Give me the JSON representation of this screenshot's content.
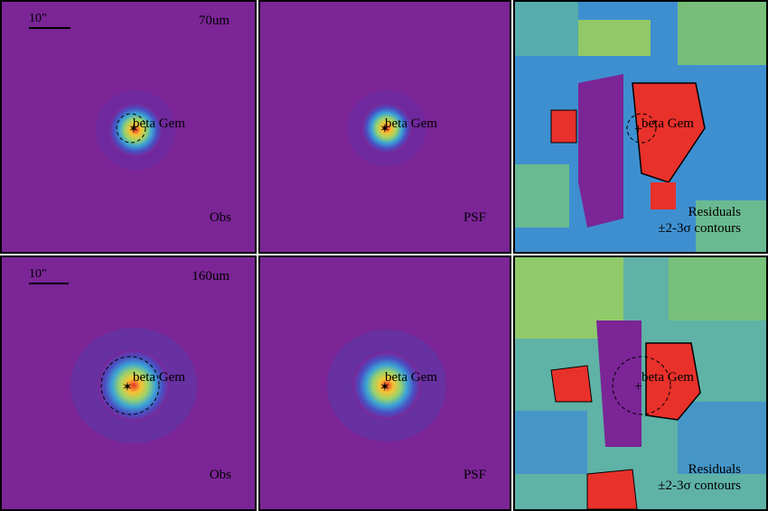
{
  "figure": {
    "rows": [
      {
        "band": "70um",
        "scale_label": "10\"",
        "target": "beta Gem",
        "panels": [
          {
            "type": "obs",
            "label": "Obs",
            "color_scheme": "viridis-on-purple"
          },
          {
            "type": "psf",
            "label": "PSF",
            "color_scheme": "viridis-on-purple"
          },
          {
            "type": "residual",
            "label_line1": "Residuals",
            "label_line2": "±2-3σ contours",
            "color_scheme": "noise"
          }
        ]
      },
      {
        "band": "160um",
        "scale_label": "10\"",
        "target": "beta Gem",
        "panels": [
          {
            "type": "obs",
            "label": "Obs",
            "color_scheme": "viridis-on-purple"
          },
          {
            "type": "psf",
            "label": "PSF",
            "color_scheme": "viridis-on-purple"
          },
          {
            "type": "residual",
            "label_line1": "Residuals",
            "label_line2": "±2-3σ contours",
            "color_scheme": "noise"
          }
        ]
      }
    ],
    "colors": {
      "background_purple": "#7b2596",
      "peak_red": "#e8312a",
      "contour": "#000000"
    }
  }
}
